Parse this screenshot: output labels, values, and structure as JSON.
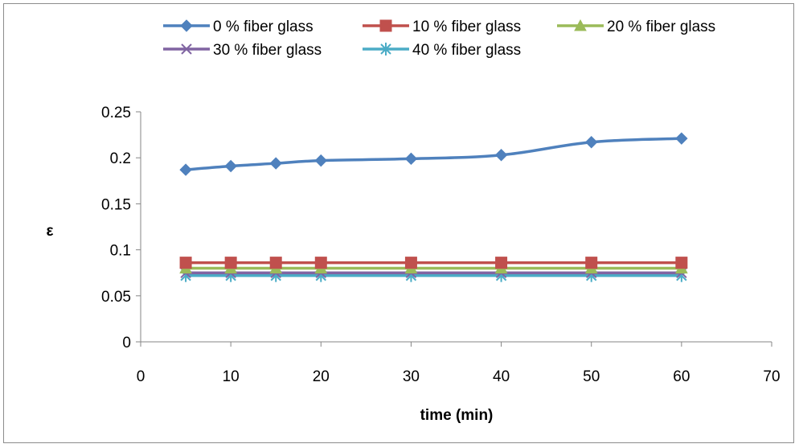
{
  "chart_data": {
    "type": "line",
    "title": "",
    "xlabel": "time (min)",
    "ylabel": "ε",
    "xlim": [
      0,
      70
    ],
    "ylim": [
      0,
      0.25
    ],
    "xticks": [
      0,
      10,
      20,
      30,
      40,
      50,
      60,
      70
    ],
    "yticks": [
      0,
      0.05,
      0.1,
      0.15,
      0.2,
      0.25
    ],
    "xtick_labels": [
      "0",
      "10",
      "20",
      "30",
      "40",
      "50",
      "60",
      "70"
    ],
    "ytick_labels": [
      "0",
      "0.05",
      "0.1",
      "0.15",
      "0.2",
      "0.25"
    ],
    "grid": false,
    "legend_position": "top",
    "x": [
      5,
      10,
      15,
      20,
      30,
      40,
      50,
      60
    ],
    "series": [
      {
        "name": "0 % fiber glass",
        "values": [
          0.187,
          0.191,
          0.194,
          0.197,
          0.199,
          0.203,
          0.217,
          0.221
        ],
        "color": "#4f81bd",
        "marker": "diamond"
      },
      {
        "name": "10 % fiber glass",
        "values": [
          0.086,
          0.086,
          0.086,
          0.086,
          0.086,
          0.086,
          0.086,
          0.086
        ],
        "color": "#c0504d",
        "marker": "square"
      },
      {
        "name": "20 % fiber glass",
        "values": [
          0.08,
          0.08,
          0.08,
          0.08,
          0.08,
          0.08,
          0.08,
          0.08
        ],
        "color": "#9bbb59",
        "marker": "triangle"
      },
      {
        "name": "30 % fiber glass",
        "values": [
          0.075,
          0.075,
          0.075,
          0.075,
          0.075,
          0.075,
          0.075,
          0.075
        ],
        "color": "#8064a2",
        "marker": "x"
      },
      {
        "name": "40 % fiber glass",
        "values": [
          0.072,
          0.072,
          0.072,
          0.072,
          0.072,
          0.072,
          0.072,
          0.072
        ],
        "color": "#4bacc6",
        "marker": "star"
      }
    ]
  }
}
